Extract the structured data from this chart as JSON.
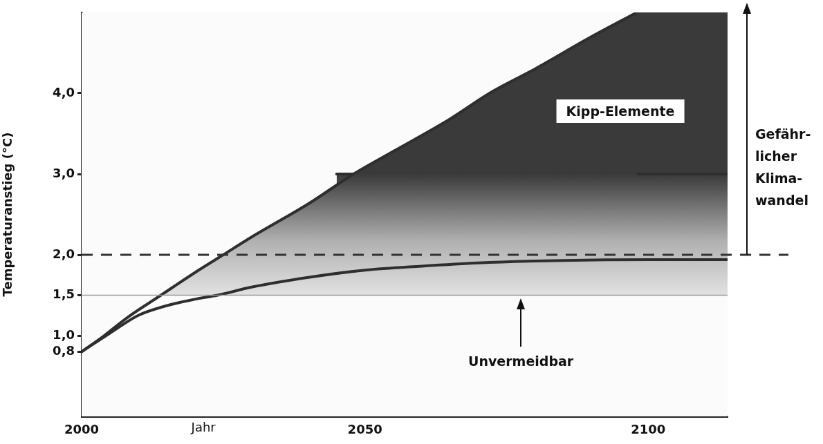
{
  "chart_data": {
    "type": "line",
    "xlabel": "Jahr",
    "ylabel": "Temperaturanstieg (°C)",
    "xlim": [
      2000,
      2114
    ],
    "xticks": [
      2000,
      2050,
      2100
    ],
    "ylim": [
      0,
      5
    ],
    "yticks": [
      {
        "value": 0.8,
        "label": "0,8"
      },
      {
        "value": 1,
        "label": "1,0"
      },
      {
        "value": 1.5,
        "label": "1,5"
      },
      {
        "value": 2,
        "label": "2,0"
      },
      {
        "value": 3,
        "label": "3,0"
      },
      {
        "value": 4,
        "label": "4,0"
      }
    ],
    "series": [
      {
        "type": "area",
        "color": "#2e2e2e",
        "x": [
          2000,
          2004,
          2008,
          2014,
          2020,
          2025,
          2030,
          2040,
          2048,
          2055,
          2065,
          2072,
          2080,
          2090,
          2098
        ],
        "values": [
          0.8,
          1.0,
          1.22,
          1.5,
          1.78,
          2.0,
          2.22,
          2.63,
          3.0,
          3.28,
          3.68,
          4.0,
          4.3,
          4.7,
          5.0
        ]
      },
      {
        "color": "#2e2e2e",
        "x": [
          2000,
          2005,
          2010,
          2015,
          2020,
          2024,
          2030,
          2040,
          2050,
          2060,
          2070,
          2085,
          2100,
          2114
        ],
        "values": [
          0.8,
          1.03,
          1.25,
          1.37,
          1.45,
          1.5,
          1.6,
          1.72,
          1.81,
          1.86,
          1.9,
          1.93,
          1.94,
          1.94
        ]
      },
      {
        "type": "area",
        "color": "#2e2e2e",
        "x": [
          2045,
          2114
        ],
        "values": [
          3,
          3
        ]
      }
    ],
    "bands": [
      {
        "axis": "y",
        "from": 3,
        "to": 5,
        "color": "#3a3a3a"
      }
    ],
    "ref_lines": [
      {
        "axis": "y",
        "value": 2,
        "line_style": "dashed",
        "color": "#333333"
      },
      {
        "axis": "y",
        "value": 1.5,
        "color": "#999999"
      }
    ],
    "annotations": [
      "Kipp-Elemente",
      "Unvermeidbar",
      "Gefähr-\nlicher\nKlima-\nwandel"
    ],
    "marker": "none",
    "grid": false,
    "legend": false
  }
}
